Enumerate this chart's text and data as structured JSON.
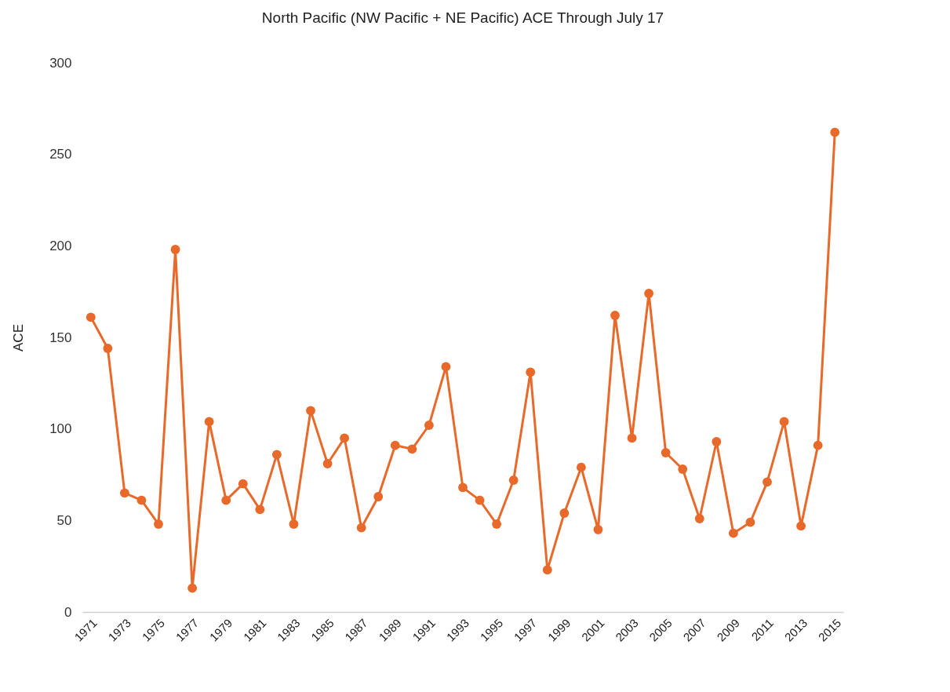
{
  "chart_data": {
    "type": "line",
    "title": "North Pacific (NW Pacific + NE Pacific) ACE Through July 17",
    "ylabel": "ACE",
    "categories": [
      "1971",
      null,
      "1973",
      null,
      "1975",
      null,
      "1977",
      null,
      "1979",
      null,
      "1981",
      null,
      "1983",
      null,
      "1985",
      null,
      "1987",
      null,
      "1989",
      null,
      "1991",
      null,
      "1993",
      null,
      "1995",
      null,
      "1997",
      null,
      "1999",
      null,
      "2001",
      null,
      "2003",
      null,
      "2005",
      null,
      "2007",
      null,
      "2009",
      null,
      "2011",
      null,
      "2013",
      null,
      "2015"
    ],
    "series": [
      {
        "color": "#e8692a",
        "values": [
          161,
          144,
          65,
          61,
          48,
          198,
          13,
          104,
          61,
          70,
          56,
          86,
          48,
          110,
          81,
          95,
          46,
          63,
          91,
          89,
          102,
          134,
          68,
          61,
          48,
          72,
          131,
          23,
          54,
          79,
          45,
          162,
          95,
          174,
          87,
          78,
          51,
          93,
          43,
          49,
          71,
          104,
          47,
          91,
          262
        ]
      }
    ],
    "ylim": [
      0,
      300
    ],
    "yticks": [
      0,
      50,
      100,
      150,
      200,
      250,
      300
    ],
    "grid": false,
    "marker": "circle",
    "line_style": "solid"
  }
}
